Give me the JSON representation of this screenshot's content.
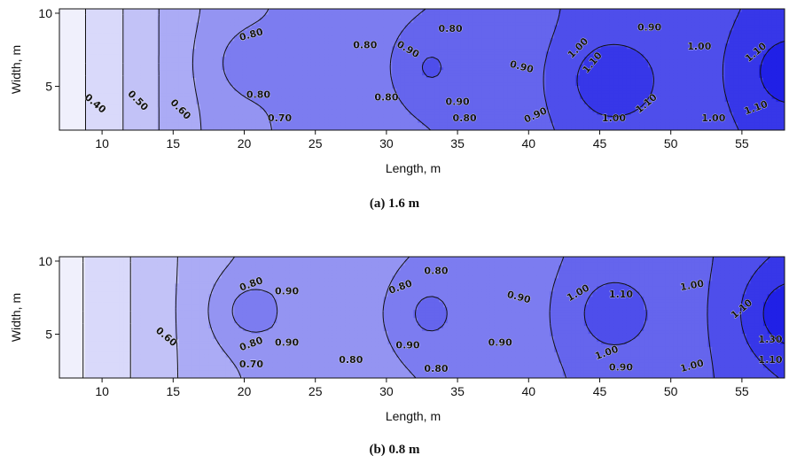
{
  "chart_data": [
    {
      "type": "contour",
      "caption": "(a) 1.6 m",
      "xlabel": "Length, m",
      "ylabel": "Width, m",
      "xlim": [
        7,
        58
      ],
      "ylim": [
        2,
        10.3
      ],
      "x_ticks": [
        "10",
        "15",
        "20",
        "25",
        "30",
        "35",
        "40",
        "45",
        "50",
        "55"
      ],
      "y_ticks": [
        "5",
        "10"
      ],
      "levels": [
        0.4,
        0.5,
        0.6,
        0.7,
        0.8,
        0.9,
        1.0,
        1.1,
        1.2
      ],
      "color_low": "#f0f0fc",
      "color_high": "#2020e6",
      "field": {
        "base": [
          [
            7,
            0.33
          ],
          [
            12,
            0.52
          ],
          [
            16,
            0.68
          ],
          [
            22,
            0.8
          ],
          [
            30,
            0.85
          ],
          [
            38,
            0.95
          ],
          [
            45,
            1.03
          ],
          [
            52,
            1.07
          ],
          [
            58,
            1.12
          ]
        ],
        "peaks": [
          {
            "x": 20,
            "y": 6.6,
            "amp": 0.1,
            "sx": 2.5,
            "sy": 2.4
          },
          {
            "x": 32.8,
            "y": 6.3,
            "amp": 0.12,
            "sx": 2.6,
            "sy": 2.8
          },
          {
            "x": 45.6,
            "y": 5.4,
            "amp": 0.15,
            "sx": 3.0,
            "sy": 2.7
          },
          {
            "x": 58,
            "y": 6.0,
            "amp": 0.13,
            "sx": 3.0,
            "sy": 3.0
          }
        ]
      },
      "contour_labels": [
        {
          "text": "0.40",
          "x": 9.5,
          "y": 3.8,
          "rot": 40
        },
        {
          "text": "0.50",
          "x": 12.5,
          "y": 4.0,
          "rot": 45
        },
        {
          "text": "0.60",
          "x": 15.5,
          "y": 3.4,
          "rot": 45
        },
        {
          "text": "0.70",
          "x": 22.5,
          "y": 2.8,
          "rot": 0
        },
        {
          "text": "0.80",
          "x": 21.0,
          "y": 4.4,
          "rot": 0
        },
        {
          "text": "0.80",
          "x": 20.5,
          "y": 8.5,
          "rot": -15
        },
        {
          "text": "0.80",
          "x": 28.5,
          "y": 7.8,
          "rot": 0
        },
        {
          "text": "0.80",
          "x": 34.5,
          "y": 8.9,
          "rot": 0
        },
        {
          "text": "0.90",
          "x": 31.5,
          "y": 7.5,
          "rot": 30
        },
        {
          "text": "0.80",
          "x": 30.0,
          "y": 4.2,
          "rot": 0
        },
        {
          "text": "0.90",
          "x": 35.0,
          "y": 3.9,
          "rot": 0
        },
        {
          "text": "0.80",
          "x": 35.5,
          "y": 2.8,
          "rot": 0
        },
        {
          "text": "0.90",
          "x": 39.5,
          "y": 6.3,
          "rot": 15
        },
        {
          "text": "0.90",
          "x": 40.5,
          "y": 3.0,
          "rot": -25
        },
        {
          "text": "0.90",
          "x": 48.5,
          "y": 9.0,
          "rot": 0
        },
        {
          "text": "1.00",
          "x": 43.5,
          "y": 7.6,
          "rot": -45
        },
        {
          "text": "1.10",
          "x": 44.5,
          "y": 6.6,
          "rot": -50
        },
        {
          "text": "1.10",
          "x": 48.3,
          "y": 3.8,
          "rot": -40
        },
        {
          "text": "1.00",
          "x": 46.0,
          "y": 2.8,
          "rot": 0
        },
        {
          "text": "1.00",
          "x": 52.0,
          "y": 7.7,
          "rot": 0
        },
        {
          "text": "1.00",
          "x": 53.0,
          "y": 2.8,
          "rot": 0
        },
        {
          "text": "1.10",
          "x": 56.0,
          "y": 7.3,
          "rot": -40
        },
        {
          "text": "1.10",
          "x": 56.0,
          "y": 3.5,
          "rot": -20
        }
      ]
    },
    {
      "type": "contour",
      "caption": "(b) 0.8 m",
      "xlabel": "Length, m",
      "ylabel": "Width, m",
      "xlim": [
        7,
        58
      ],
      "ylim": [
        2,
        10.3
      ],
      "x_ticks": [
        "10",
        "15",
        "20",
        "25",
        "30",
        "35",
        "40",
        "45",
        "50",
        "55"
      ],
      "y_ticks": [
        "5",
        "10"
      ],
      "levels": [
        0.5,
        0.6,
        0.7,
        0.8,
        0.9,
        1.0,
        1.1,
        1.2,
        1.3
      ],
      "color_low": "#f0f0fc",
      "color_high": "#2020e6",
      "field": {
        "base": [
          [
            7,
            0.45
          ],
          [
            12,
            0.6
          ],
          [
            16,
            0.72
          ],
          [
            22,
            0.84
          ],
          [
            30,
            0.87
          ],
          [
            38,
            0.95
          ],
          [
            45,
            1.02
          ],
          [
            52,
            1.08
          ],
          [
            58,
            1.18
          ]
        ],
        "peaks": [
          {
            "x": 20,
            "y": 6.6,
            "amp": 0.13,
            "sx": 2.6,
            "sy": 2.5
          },
          {
            "x": 32.8,
            "y": 6.4,
            "amp": 0.12,
            "sx": 2.6,
            "sy": 2.8
          },
          {
            "x": 45.6,
            "y": 6.4,
            "amp": 0.13,
            "sx": 2.8,
            "sy": 2.8
          },
          {
            "x": 58,
            "y": 6.4,
            "amp": 0.18,
            "sx": 3.2,
            "sy": 3.2
          }
        ]
      },
      "contour_labels": [
        {
          "text": "0.60",
          "x": 14.5,
          "y": 4.8,
          "rot": 40
        },
        {
          "text": "0.70",
          "x": 20.5,
          "y": 2.9,
          "rot": 0
        },
        {
          "text": "0.80",
          "x": 20.5,
          "y": 4.3,
          "rot": -20
        },
        {
          "text": "0.90",
          "x": 23.0,
          "y": 4.4,
          "rot": 0
        },
        {
          "text": "0.80",
          "x": 20.5,
          "y": 8.4,
          "rot": -20
        },
        {
          "text": "0.90",
          "x": 23.0,
          "y": 7.9,
          "rot": 0
        },
        {
          "text": "0.80",
          "x": 27.5,
          "y": 3.2,
          "rot": 0
        },
        {
          "text": "0.80",
          "x": 33.5,
          "y": 9.3,
          "rot": 0
        },
        {
          "text": "0.80",
          "x": 31.0,
          "y": 8.2,
          "rot": -20
        },
        {
          "text": "0.90",
          "x": 31.5,
          "y": 4.2,
          "rot": 0
        },
        {
          "text": "0.80",
          "x": 33.5,
          "y": 2.6,
          "rot": 0
        },
        {
          "text": "0.90",
          "x": 39.3,
          "y": 7.5,
          "rot": 15
        },
        {
          "text": "0.90",
          "x": 38.0,
          "y": 4.4,
          "rot": 0
        },
        {
          "text": "1.00",
          "x": 43.5,
          "y": 7.8,
          "rot": -30
        },
        {
          "text": "1.10",
          "x": 46.5,
          "y": 7.7,
          "rot": 0
        },
        {
          "text": "1.00",
          "x": 51.5,
          "y": 8.3,
          "rot": -10
        },
        {
          "text": "1.00",
          "x": 45.5,
          "y": 3.7,
          "rot": -20
        },
        {
          "text": "0.90",
          "x": 46.5,
          "y": 2.7,
          "rot": 0
        },
        {
          "text": "1.00",
          "x": 51.5,
          "y": 2.8,
          "rot": -15
        },
        {
          "text": "1.10",
          "x": 55.0,
          "y": 6.7,
          "rot": -40
        },
        {
          "text": "1.30",
          "x": 57.0,
          "y": 4.6,
          "rot": 0
        },
        {
          "text": "1.10",
          "x": 57.0,
          "y": 3.2,
          "rot": 0
        }
      ]
    }
  ]
}
